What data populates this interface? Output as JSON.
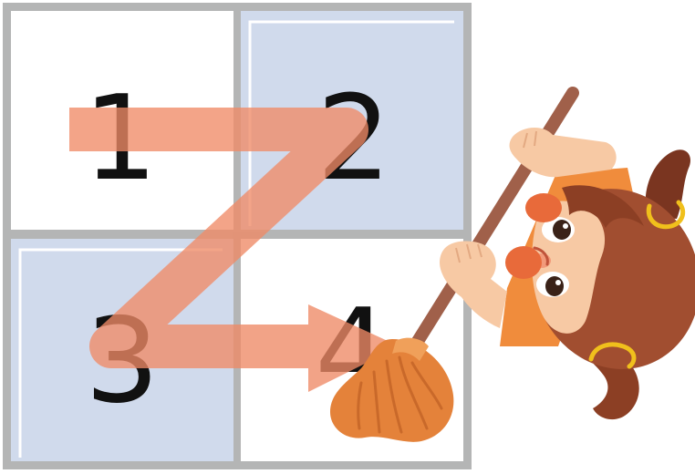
{
  "grid": {
    "cells": [
      {
        "label": "1",
        "fill": "#ffffff"
      },
      {
        "label": "2",
        "fill": "#d0daec"
      },
      {
        "label": "3",
        "fill": "#d0daec"
      },
      {
        "label": "4",
        "fill": "#ffffff"
      }
    ]
  },
  "colors": {
    "grid_border": "#b4b5b5",
    "cell_highlight": "#ffffff",
    "path_arrow": "#ef8a66",
    "digit": "#111111",
    "broom_handle": "#a0604a",
    "broom_head": "#e4823a",
    "hair": "#8c3f24",
    "skin": "#f7c9a4",
    "shirt": "#f08c3c",
    "hair_tie": "#f0c01c"
  },
  "icons": [
    "z-order-path-arrow",
    "girl-sweeping-illustration",
    "broom-icon"
  ]
}
